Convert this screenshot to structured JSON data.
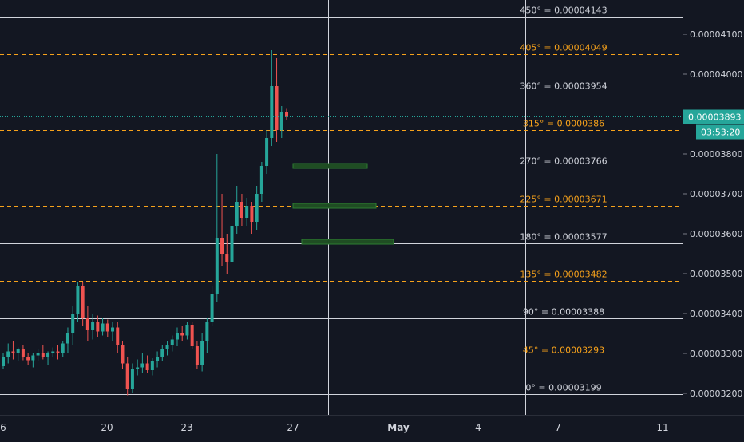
{
  "chart_data": {
    "type": "candlestick",
    "xaxis": {
      "tick_labels": [
        "6",
        "20",
        "23",
        "27",
        "May",
        "4",
        "7",
        "11"
      ]
    },
    "yaxis": {
      "range": [
        3.16e-05,
        4.18e-05
      ],
      "tick_labels": [
        "0.00004100",
        "0.00004000",
        "0.00003800",
        "0.00003700",
        "0.00003600",
        "0.00003500",
        "0.00003400",
        "0.00003300",
        "0.00003200"
      ]
    },
    "gann_levels": [
      {
        "label": "450° = 0.00004143",
        "price": 4.143e-05,
        "style": "white"
      },
      {
        "label": "405° = 0.00004049",
        "price": 4.049e-05,
        "style": "orange"
      },
      {
        "label": "360° = 0.00003954",
        "price": 3.954e-05,
        "style": "white"
      },
      {
        "label": "315° = 0.0000386",
        "price": 3.86e-05,
        "style": "orange"
      },
      {
        "label": "270° = 0.00003766",
        "price": 3.766e-05,
        "style": "white"
      },
      {
        "label": "225° = 0.00003671",
        "price": 3.671e-05,
        "style": "orange"
      },
      {
        "label": "180° = 0.00003577",
        "price": 3.577e-05,
        "style": "white"
      },
      {
        "label": "135° = 0.00003482",
        "price": 3.482e-05,
        "style": "orange"
      },
      {
        "label": "90° = 0.00003388",
        "price": 3.388e-05,
        "style": "white"
      },
      {
        "label": "45° = 0.00003293",
        "price": 3.293e-05,
        "style": "orange"
      },
      {
        "label": "0° = 0.00003199",
        "price": 3.199e-05,
        "style": "white"
      }
    ],
    "current_price": {
      "label": "0.00003893",
      "price": 3.893e-05,
      "countdown": "03:53:20"
    },
    "highlight_zones": [
      {
        "price": 3.77e-05
      },
      {
        "price": 3.67e-05
      },
      {
        "price": 3.58e-05
      }
    ],
    "candles": [
      {
        "o": 3.268,
        "h": 3.3,
        "l": 3.26,
        "c": 3.29
      },
      {
        "o": 3.29,
        "h": 3.325,
        "l": 3.275,
        "c": 3.305
      },
      {
        "o": 3.305,
        "h": 3.33,
        "l": 3.285,
        "c": 3.3
      },
      {
        "o": 3.3,
        "h": 3.315,
        "l": 3.28,
        "c": 3.31
      },
      {
        "o": 3.31,
        "h": 3.322,
        "l": 3.283,
        "c": 3.29
      },
      {
        "o": 3.29,
        "h": 3.302,
        "l": 3.27,
        "c": 3.283
      },
      {
        "o": 3.283,
        "h": 3.3,
        "l": 3.265,
        "c": 3.295
      },
      {
        "o": 3.295,
        "h": 3.312,
        "l": 3.282,
        "c": 3.3
      },
      {
        "o": 3.3,
        "h": 3.322,
        "l": 3.285,
        "c": 3.29
      },
      {
        "o": 3.29,
        "h": 3.305,
        "l": 3.272,
        "c": 3.3
      },
      {
        "o": 3.3,
        "h": 3.315,
        "l": 3.29,
        "c": 3.305
      },
      {
        "o": 3.305,
        "h": 3.32,
        "l": 3.285,
        "c": 3.3
      },
      {
        "o": 3.3,
        "h": 3.33,
        "l": 3.29,
        "c": 3.325
      },
      {
        "o": 3.325,
        "h": 3.365,
        "l": 3.3,
        "c": 3.35
      },
      {
        "o": 3.35,
        "h": 3.42,
        "l": 3.32,
        "c": 3.4
      },
      {
        "o": 3.4,
        "h": 3.48,
        "l": 3.38,
        "c": 3.47
      },
      {
        "o": 3.47,
        "h": 3.48,
        "l": 3.37,
        "c": 3.39
      },
      {
        "o": 3.39,
        "h": 3.42,
        "l": 3.33,
        "c": 3.36
      },
      {
        "o": 3.36,
        "h": 3.4,
        "l": 3.335,
        "c": 3.38
      },
      {
        "o": 3.38,
        "h": 3.395,
        "l": 3.34,
        "c": 3.355
      },
      {
        "o": 3.355,
        "h": 3.39,
        "l": 3.345,
        "c": 3.375
      },
      {
        "o": 3.375,
        "h": 3.385,
        "l": 3.34,
        "c": 3.355
      },
      {
        "o": 3.355,
        "h": 3.38,
        "l": 3.33,
        "c": 3.365
      },
      {
        "o": 3.365,
        "h": 3.38,
        "l": 3.3,
        "c": 3.32
      },
      {
        "o": 3.32,
        "h": 3.33,
        "l": 3.26,
        "c": 3.275
      },
      {
        "o": 3.275,
        "h": 3.29,
        "l": 3.195,
        "c": 3.21
      },
      {
        "o": 3.21,
        "h": 3.275,
        "l": 3.2,
        "c": 3.26
      },
      {
        "o": 3.26,
        "h": 3.285,
        "l": 3.245,
        "c": 3.265
      },
      {
        "o": 3.265,
        "h": 3.3,
        "l": 3.25,
        "c": 3.275
      },
      {
        "o": 3.275,
        "h": 3.295,
        "l": 3.25,
        "c": 3.258
      },
      {
        "o": 3.258,
        "h": 3.288,
        "l": 3.245,
        "c": 3.28
      },
      {
        "o": 3.28,
        "h": 3.305,
        "l": 3.265,
        "c": 3.29
      },
      {
        "o": 3.29,
        "h": 3.32,
        "l": 3.28,
        "c": 3.312
      },
      {
        "o": 3.312,
        "h": 3.33,
        "l": 3.295,
        "c": 3.32
      },
      {
        "o": 3.32,
        "h": 3.345,
        "l": 3.305,
        "c": 3.335
      },
      {
        "o": 3.335,
        "h": 3.365,
        "l": 3.318,
        "c": 3.35
      },
      {
        "o": 3.35,
        "h": 3.37,
        "l": 3.33,
        "c": 3.345
      },
      {
        "o": 3.345,
        "h": 3.38,
        "l": 3.335,
        "c": 3.372
      },
      {
        "o": 3.372,
        "h": 3.38,
        "l": 3.31,
        "c": 3.318
      },
      {
        "o": 3.318,
        "h": 3.33,
        "l": 3.26,
        "c": 3.27
      },
      {
        "o": 3.27,
        "h": 3.35,
        "l": 3.255,
        "c": 3.33
      },
      {
        "o": 3.33,
        "h": 3.39,
        "l": 3.3,
        "c": 3.38
      },
      {
        "o": 3.38,
        "h": 3.47,
        "l": 3.37,
        "c": 3.45
      },
      {
        "o": 3.45,
        "h": 3.8,
        "l": 3.43,
        "c": 3.59
      },
      {
        "o": 3.59,
        "h": 3.7,
        "l": 3.52,
        "c": 3.55
      },
      {
        "o": 3.55,
        "h": 3.6,
        "l": 3.5,
        "c": 3.53
      },
      {
        "o": 3.53,
        "h": 3.64,
        "l": 3.5,
        "c": 3.62
      },
      {
        "o": 3.62,
        "h": 3.72,
        "l": 3.6,
        "c": 3.68
      },
      {
        "o": 3.68,
        "h": 3.7,
        "l": 3.62,
        "c": 3.64
      },
      {
        "o": 3.64,
        "h": 3.69,
        "l": 3.62,
        "c": 3.67
      },
      {
        "o": 3.67,
        "h": 3.68,
        "l": 3.6,
        "c": 3.63
      },
      {
        "o": 3.63,
        "h": 3.72,
        "l": 3.61,
        "c": 3.7
      },
      {
        "o": 3.7,
        "h": 3.78,
        "l": 3.68,
        "c": 3.77
      },
      {
        "o": 3.77,
        "h": 3.86,
        "l": 3.75,
        "c": 3.84
      },
      {
        "o": 3.84,
        "h": 4.06,
        "l": 3.82,
        "c": 3.97
      },
      {
        "o": 3.97,
        "h": 4.04,
        "l": 3.83,
        "c": 3.86
      },
      {
        "o": 3.86,
        "h": 3.92,
        "l": 3.84,
        "c": 3.905
      },
      {
        "o": 3.905,
        "h": 3.915,
        "l": 3.885,
        "c": 3.893
      }
    ]
  }
}
